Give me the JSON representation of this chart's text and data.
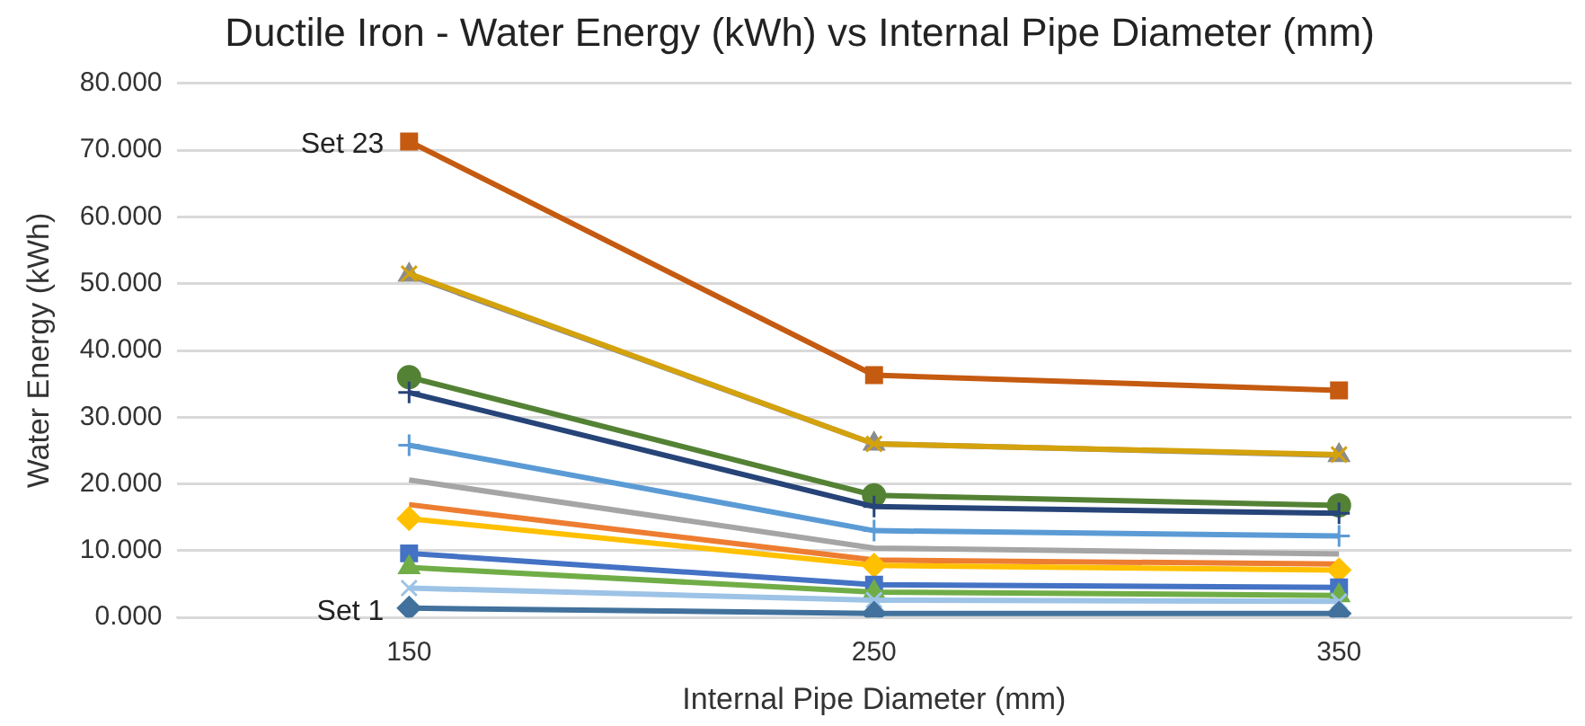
{
  "chart_data": {
    "type": "line",
    "title": "Ductile Iron - Water Energy (kWh) vs Internal Pipe Diameter (mm)",
    "xlabel": "Internal Pipe Diameter (mm)",
    "ylabel": "Water Energy (kWh)",
    "categories": [
      "150",
      "250",
      "350"
    ],
    "ylim": [
      0,
      80
    ],
    "yticks": [
      {
        "value": 0,
        "label": "0.000"
      },
      {
        "value": 10,
        "label": "10.000"
      },
      {
        "value": 20,
        "label": "20.000"
      },
      {
        "value": 30,
        "label": "30.000"
      },
      {
        "value": 40,
        "label": "40.000"
      },
      {
        "value": 50,
        "label": "50.000"
      },
      {
        "value": 60,
        "label": "60.000"
      },
      {
        "value": 70,
        "label": "70.000"
      },
      {
        "value": 80,
        "label": "80.000"
      }
    ],
    "grid": "y",
    "legend": false,
    "line_style": "solid",
    "series": [
      {
        "color": "#41719c",
        "marker": "diamond",
        "values": [
          1.4,
          0.6,
          0.6
        ]
      },
      {
        "color": "#9dc3e6",
        "marker": "x",
        "values": [
          4.4,
          2.6,
          2.4
        ]
      },
      {
        "color": "#70ad47",
        "marker": "triangle",
        "values": [
          7.5,
          3.8,
          3.3
        ]
      },
      {
        "color": "#4472c4",
        "marker": "square",
        "values": [
          9.6,
          4.9,
          4.5
        ]
      },
      {
        "color": "#ffc000",
        "marker": "diamond",
        "values": [
          14.8,
          7.8,
          7.1
        ]
      },
      {
        "color": "#ed7d31",
        "marker": "none",
        "values": [
          16.9,
          8.6,
          8.0
        ]
      },
      {
        "color": "#a5a5a5",
        "marker": "none",
        "values": [
          20.6,
          10.4,
          9.5
        ]
      },
      {
        "color": "#5b9bd5",
        "marker": "cross",
        "values": [
          25.8,
          13.0,
          12.2
        ]
      },
      {
        "color": "#264478",
        "marker": "cross",
        "values": [
          33.7,
          16.6,
          15.6
        ]
      },
      {
        "color": "#548235",
        "marker": "circle",
        "values": [
          36.0,
          18.3,
          16.8
        ]
      },
      {
        "color": "#d4a20c",
        "marker": "x",
        "values": [
          51.5,
          26.0,
          24.4
        ]
      },
      {
        "color": "#8c8c8c",
        "marker": "triangle",
        "values": [
          51.3,
          26.0,
          24.3
        ]
      },
      {
        "color": "#c55a11",
        "marker": "square",
        "values": [
          71.3,
          36.3,
          34.0
        ]
      }
    ],
    "annotations": [
      {
        "text": "Set 23",
        "x": "150",
        "y": 71.3
      },
      {
        "text": "Set 1",
        "x": "150",
        "y": 1.4
      }
    ]
  }
}
